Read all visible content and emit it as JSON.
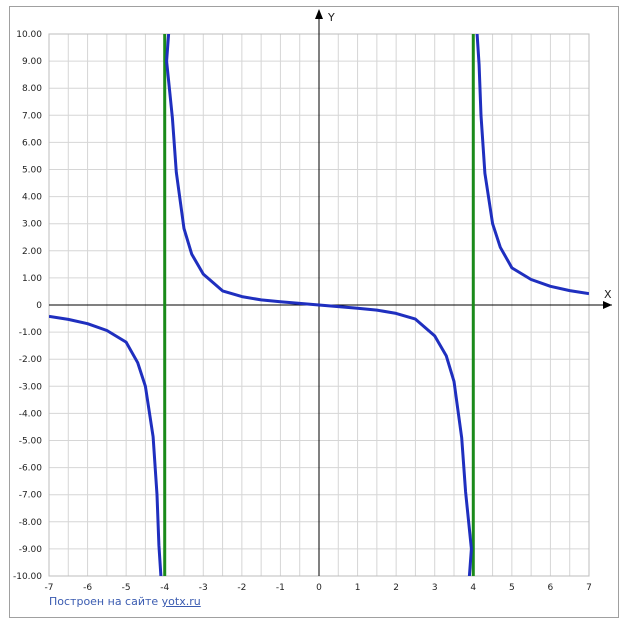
{
  "chart_data": {
    "type": "line",
    "title": "",
    "xlabel": "X",
    "ylabel": "Y",
    "xlim": [
      -7,
      7
    ],
    "ylim": [
      -10,
      10
    ],
    "grid": true,
    "x_ticks": [
      "-7",
      "-6",
      "-5",
      "-4",
      "-3",
      "-2",
      "-1",
      "0",
      "1",
      "2",
      "3",
      "4",
      "5",
      "6",
      "7"
    ],
    "y_ticks": [
      "10.00",
      "9.00",
      "8.00",
      "7.00",
      "6.00",
      "5.00",
      "4.00",
      "3.00",
      "2.00",
      "1.00",
      "0",
      "-1.00",
      "-2.00",
      "-3.00",
      "-4.00",
      "-5.00",
      "-6.00",
      "-7.00",
      "-8.00",
      "-9.00",
      "-10.00"
    ],
    "series": [
      {
        "color": "#1f2fbf",
        "branches": [
          {
            "x": [
              -7,
              -6.5,
              -6,
              -5.5,
              -5,
              -4.7,
              -4.5,
              -4.3,
              -4.2,
              -4.15,
              -4.1,
              -4.07
            ],
            "y": [
              -0.42,
              -0.53,
              -0.69,
              -0.94,
              -1.37,
              -2.13,
              -3.0,
              -4.86,
              -7.0,
              -8.86,
              -10.0,
              -11.0
            ]
          },
          {
            "x": [
              -3.87,
              -3.9,
              -3.95,
              -3.8,
              -3.7,
              -3.5,
              -3.3,
              -3.0,
              -2.5,
              -2.0,
              -1.5,
              -1.0,
              -0.5,
              0,
              0.5,
              1.0,
              1.5,
              2.0,
              2.5,
              3.0,
              3.3,
              3.5,
              3.7,
              3.8,
              3.95,
              3.9,
              3.87
            ],
            "y": [
              11.0,
              10.0,
              9.0,
              6.9,
              4.9,
              2.82,
              1.88,
              1.14,
              0.52,
              0.31,
              0.19,
              0.12,
              0.06,
              0,
              -0.06,
              -0.12,
              -0.19,
              -0.31,
              -0.52,
              -1.14,
              -1.88,
              -2.82,
              -4.9,
              -6.9,
              -9.0,
              -10.0,
              -11.0
            ]
          },
          {
            "x": [
              4.07,
              4.1,
              4.15,
              4.2,
              4.3,
              4.5,
              4.7,
              5.0,
              5.5,
              6.0,
              6.5,
              7.0
            ],
            "y": [
              11.0,
              10.0,
              8.86,
              7.0,
              4.86,
              3.0,
              2.13,
              1.37,
              0.94,
              0.69,
              0.53,
              0.42
            ]
          }
        ]
      }
    ],
    "asymptotes": {
      "x": [
        -4,
        4
      ],
      "color": "#1a8a1a"
    }
  },
  "credit": {
    "text": "Построен на сайте",
    "link": "yotx.ru"
  }
}
